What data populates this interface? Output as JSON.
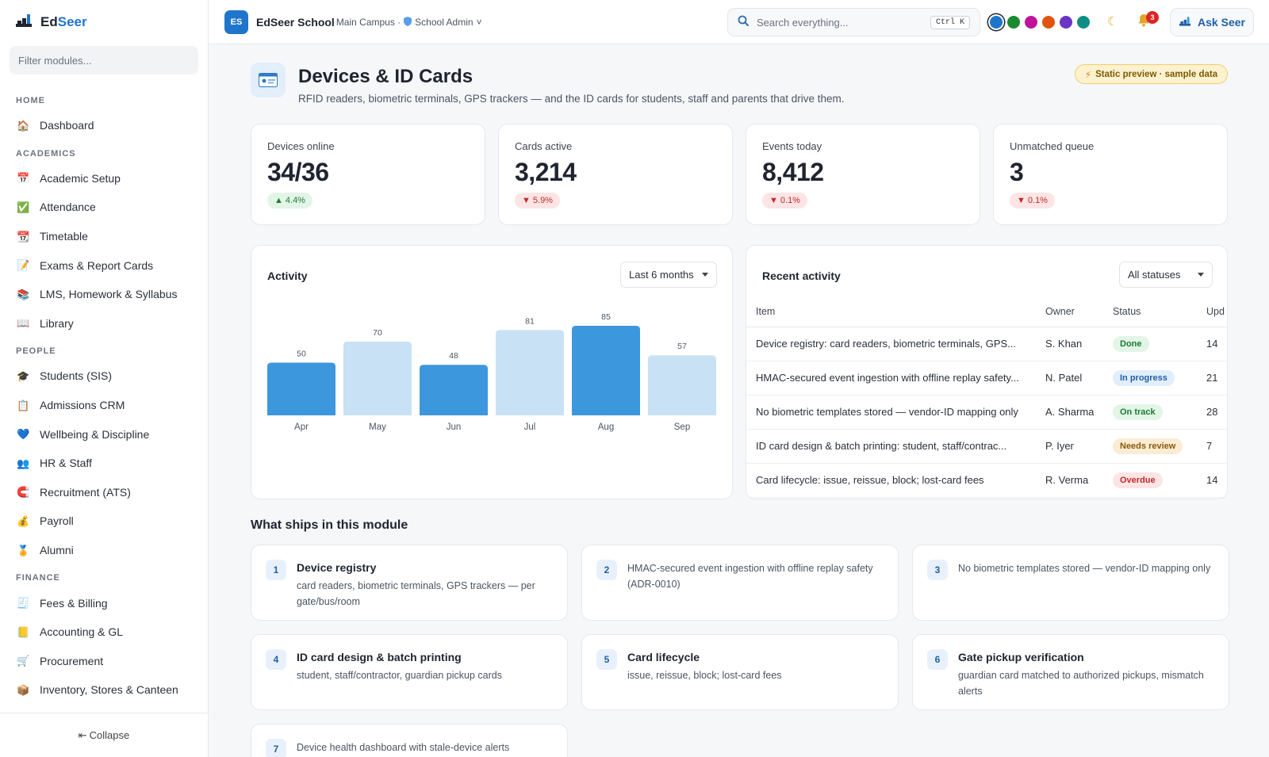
{
  "app": {
    "name_part1": "Ed",
    "name_part2": "Seer"
  },
  "sidebar": {
    "filter_placeholder": "Filter modules...",
    "sections": [
      {
        "title": "HOME",
        "items": [
          {
            "label": "Dashboard",
            "icon": "house-icon"
          }
        ]
      },
      {
        "title": "ACADEMICS",
        "items": [
          {
            "label": "Academic Setup",
            "icon": "calendar-icon"
          },
          {
            "label": "Attendance",
            "icon": "checkbox-icon"
          },
          {
            "label": "Timetable",
            "icon": "calendar-grid-icon"
          },
          {
            "label": "Exams & Report Cards",
            "icon": "report-icon"
          },
          {
            "label": "LMS, Homework & Syllabus",
            "icon": "books-icon"
          },
          {
            "label": "Library",
            "icon": "open-book-icon"
          }
        ]
      },
      {
        "title": "PEOPLE",
        "items": [
          {
            "label": "Students (SIS)",
            "icon": "graduation-cap-icon"
          },
          {
            "label": "Admissions CRM",
            "icon": "clipboard-icon"
          },
          {
            "label": "Wellbeing & Discipline",
            "icon": "heart-icon"
          },
          {
            "label": "HR & Staff",
            "icon": "people-icon"
          },
          {
            "label": "Recruitment (ATS)",
            "icon": "magnet-icon"
          },
          {
            "label": "Payroll",
            "icon": "money-bag-icon"
          },
          {
            "label": "Alumni",
            "icon": "medal-icon"
          }
        ]
      },
      {
        "title": "FINANCE",
        "items": [
          {
            "label": "Fees & Billing",
            "icon": "receipt-icon"
          },
          {
            "label": "Accounting & GL",
            "icon": "ledger-icon"
          },
          {
            "label": "Procurement",
            "icon": "cart-icon"
          },
          {
            "label": "Inventory, Stores & Canteen",
            "icon": "package-icon"
          }
        ]
      }
    ],
    "collapse_label": "Collapse"
  },
  "topbar": {
    "org_badge": "ES",
    "org_name": "EdSeer School",
    "campus": "Main Campus ·",
    "role": "School Admin",
    "search_placeholder": "Search everything...",
    "shortcut": "Ctrl K",
    "theme_colors": [
      "#1f75cb",
      "#1b8a2f",
      "#c0139b",
      "#e0540f",
      "#6b35c4",
      "#0e8f83"
    ],
    "notifications_count": "3",
    "ask_label": "Ask Seer"
  },
  "page": {
    "title": "Devices & ID Cards",
    "subtitle": "RFID readers, biometric terminals, GPS trackers — and the ID cards for students, staff and parents that drive them.",
    "badge": "Static preview · sample data"
  },
  "kpis": [
    {
      "label": "Devices online",
      "value": "34/36",
      "delta": "4.4%",
      "trend": "up"
    },
    {
      "label": "Cards active",
      "value": "3,214",
      "delta": "5.9%",
      "trend": "down"
    },
    {
      "label": "Events today",
      "value": "8,412",
      "delta": "0.1%",
      "trend": "down"
    },
    {
      "label": "Unmatched queue",
      "value": "3",
      "delta": "0.1%",
      "trend": "down"
    }
  ],
  "activity": {
    "title": "Activity",
    "range": "Last 6 months"
  },
  "chart_data": {
    "type": "bar",
    "categories": [
      "Apr",
      "May",
      "Jun",
      "Jul",
      "Aug",
      "Sep"
    ],
    "values": [
      50,
      70,
      48,
      81,
      85,
      57
    ],
    "colors": [
      "#3d97dc",
      "#c9e1f5",
      "#3d97dc",
      "#c9e1f5",
      "#3d97dc",
      "#c9e1f5"
    ],
    "ylim": [
      0,
      85
    ],
    "grid": false
  },
  "recent": {
    "title": "Recent activity",
    "filter": "All statuses",
    "columns": [
      "Item",
      "Owner",
      "Status",
      "Upd"
    ],
    "rows": [
      {
        "item": "Device registry: card readers, biometric terminals, GPS...",
        "owner": "S. Khan",
        "status": "Done",
        "status_kind": "done",
        "updated": "14"
      },
      {
        "item": "HMAC-secured event ingestion with offline replay safety...",
        "owner": "N. Patel",
        "status": "In progress",
        "status_kind": "progress",
        "updated": "21"
      },
      {
        "item": "No biometric templates stored — vendor-ID mapping only",
        "owner": "A. Sharma",
        "status": "On track",
        "status_kind": "track",
        "updated": "28"
      },
      {
        "item": "ID card design & batch printing: student, staff/contrac...",
        "owner": "P. Iyer",
        "status": "Needs review",
        "status_kind": "review",
        "updated": "7"
      },
      {
        "item": "Card lifecycle: issue, reissue, block; lost-card fees",
        "owner": "R. Verma",
        "status": "Overdue",
        "status_kind": "overdue",
        "updated": "14"
      }
    ]
  },
  "features": {
    "title": "What ships in this module",
    "items": [
      {
        "num": "1",
        "title": "Device registry",
        "desc": "card readers, biometric terminals, GPS trackers — per gate/bus/room"
      },
      {
        "num": "2",
        "title": "",
        "desc": "HMAC-secured event ingestion with offline replay safety (ADR-0010)"
      },
      {
        "num": "3",
        "title": "",
        "desc": "No biometric templates stored — vendor-ID mapping only"
      },
      {
        "num": "4",
        "title": "ID card design & batch printing",
        "desc": "student, staff/contractor, guardian pickup cards"
      },
      {
        "num": "5",
        "title": "Card lifecycle",
        "desc": "issue, reissue, block; lost-card fees"
      },
      {
        "num": "6",
        "title": "Gate pickup verification",
        "desc": "guardian card matched to authorized pickups, mismatch alerts"
      },
      {
        "num": "7",
        "title": "",
        "desc": "Device health dashboard with stale-device alerts"
      }
    ]
  }
}
